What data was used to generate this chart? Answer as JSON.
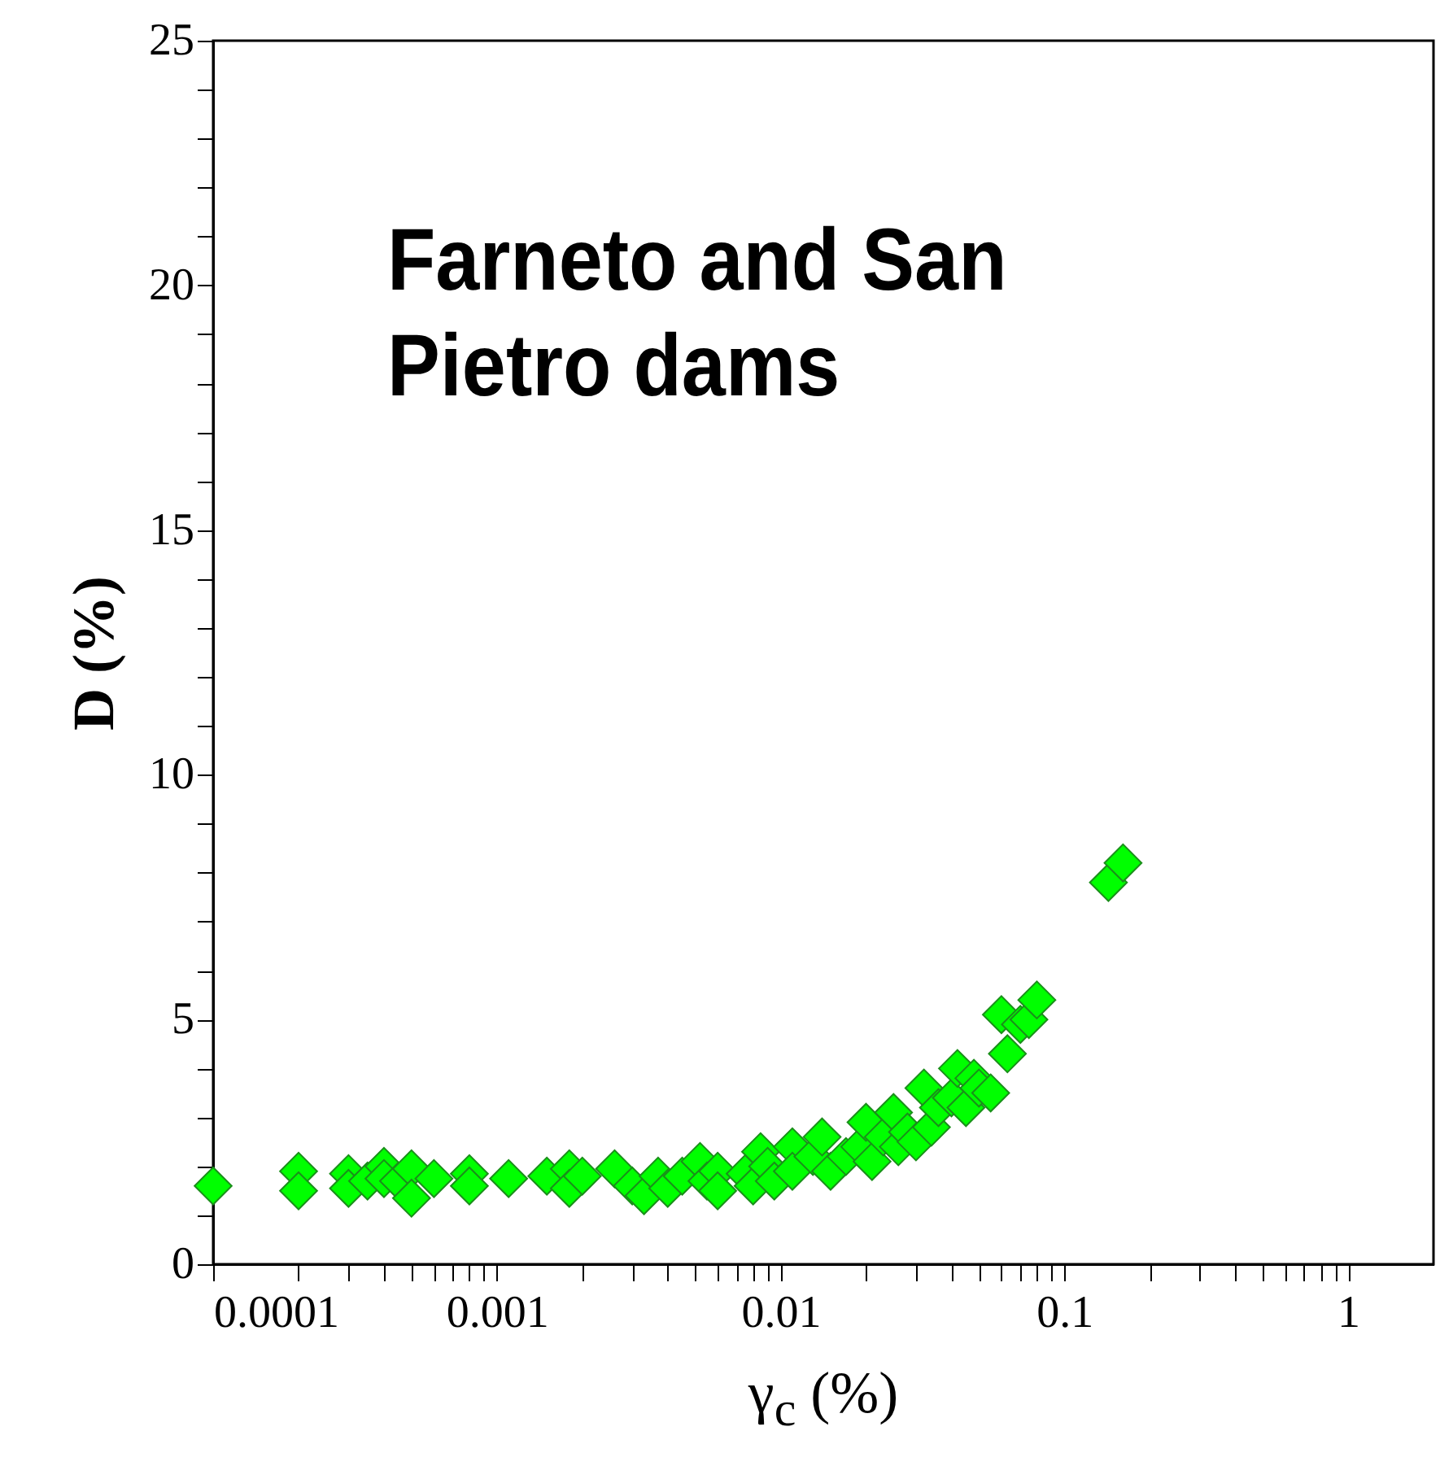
{
  "chart_data": {
    "type": "scatter",
    "xlabel": "γ$_{c}$ (%)",
    "ylabel": "D (%)",
    "annotations": [
      "Farneto and San Pietro dams"
    ],
    "log": "x",
    "marker": "diamond",
    "grid": false,
    "xlim": [
      0.0001,
      2
    ],
    "ylim": [
      0,
      25
    ],
    "xticks": [
      0.0001,
      {
        "value": 0.0002,
        "label": null
      },
      {
        "value": 0.0003,
        "label": null
      },
      {
        "value": 0.0004,
        "label": null
      },
      {
        "value": 0.0005,
        "label": null
      },
      {
        "value": 0.0006,
        "label": null
      },
      {
        "value": 0.0007,
        "label": null
      },
      {
        "value": 0.0008,
        "label": null
      },
      {
        "value": 0.0009,
        "label": null
      },
      0.001,
      {
        "value": 0.002,
        "label": null
      },
      {
        "value": 0.003,
        "label": null
      },
      {
        "value": 0.004,
        "label": null
      },
      {
        "value": 0.005,
        "label": null
      },
      {
        "value": 0.006,
        "label": null
      },
      {
        "value": 0.007,
        "label": null
      },
      {
        "value": 0.008,
        "label": null
      },
      {
        "value": 0.009,
        "label": null
      },
      0.01,
      {
        "value": 0.02,
        "label": null
      },
      {
        "value": 0.03,
        "label": null
      },
      {
        "value": 0.04,
        "label": null
      },
      {
        "value": 0.05,
        "label": null
      },
      {
        "value": 0.06,
        "label": null
      },
      {
        "value": 0.07,
        "label": null
      },
      {
        "value": 0.08,
        "label": null
      },
      {
        "value": 0.09,
        "label": null
      },
      0.1,
      {
        "value": 0.2,
        "label": null
      },
      {
        "value": 0.3,
        "label": null
      },
      {
        "value": 0.4,
        "label": null
      },
      {
        "value": 0.5,
        "label": null
      },
      {
        "value": 0.6,
        "label": null
      },
      {
        "value": 0.7,
        "label": null
      },
      {
        "value": 0.8,
        "label": null
      },
      {
        "value": 0.9,
        "label": null
      },
      1
    ],
    "yticks": [
      0,
      {
        "value": 1,
        "label": null
      },
      {
        "value": 2,
        "label": null
      },
      {
        "value": 3,
        "label": null
      },
      {
        "value": 4,
        "label": null
      },
      5,
      {
        "value": 6,
        "label": null
      },
      {
        "value": 7,
        "label": null
      },
      {
        "value": 8,
        "label": null
      },
      {
        "value": 9,
        "label": null
      },
      10,
      {
        "value": 11,
        "label": null
      },
      {
        "value": 12,
        "label": null
      },
      {
        "value": 13,
        "label": null
      },
      {
        "value": 14,
        "label": null
      },
      15,
      {
        "value": 16,
        "label": null
      },
      {
        "value": 17,
        "label": null
      },
      {
        "value": 18,
        "label": null
      },
      {
        "value": 19,
        "label": null
      },
      20,
      {
        "value": 21,
        "label": null
      },
      {
        "value": 22,
        "label": null
      },
      {
        "value": 23,
        "label": null
      },
      {
        "value": 24,
        "label": null
      },
      25
    ],
    "series": [
      {
        "color": "#00ff00",
        "x": [
          0.0001,
          0.0002,
          0.0002,
          0.0003,
          0.0003,
          0.00035,
          0.0004,
          0.0004,
          0.00045,
          0.0005,
          0.0005,
          0.0006,
          0.0008,
          0.0008,
          0.0011,
          0.0015,
          0.0018,
          0.0018,
          0.002,
          0.0026,
          0.003,
          0.0033,
          0.0037,
          0.004,
          0.0045,
          0.0052,
          0.0055,
          0.006,
          0.006,
          0.0075,
          0.008,
          0.0085,
          0.009,
          0.0095,
          0.011,
          0.011,
          0.013,
          0.014,
          0.015,
          0.017,
          0.019,
          0.02,
          0.021,
          0.023,
          0.025,
          0.026,
          0.028,
          0.03,
          0.032,
          0.034,
          0.036,
          0.04,
          0.042,
          0.045,
          0.048,
          0.05,
          0.055,
          0.06,
          0.063,
          0.07,
          0.075,
          0.08,
          0.143,
          0.161
        ],
        "values": [
          1.6,
          1.9,
          1.5,
          1.85,
          1.55,
          1.7,
          2.0,
          1.75,
          1.7,
          1.95,
          1.35,
          1.75,
          1.85,
          1.6,
          1.75,
          1.8,
          1.95,
          1.55,
          1.8,
          1.95,
          1.6,
          1.4,
          1.8,
          1.55,
          1.8,
          2.1,
          1.7,
          1.9,
          1.5,
          1.85,
          1.6,
          2.3,
          2.0,
          1.7,
          2.4,
          1.9,
          2.2,
          2.6,
          1.9,
          2.2,
          2.4,
          2.9,
          2.1,
          2.6,
          3.1,
          2.4,
          2.7,
          2.5,
          3.6,
          2.8,
          3.2,
          3.4,
          4.0,
          3.2,
          3.8,
          3.6,
          3.5,
          5.1,
          4.3,
          4.9,
          5.0,
          5.4,
          7.8,
          8.2
        ]
      }
    ]
  }
}
